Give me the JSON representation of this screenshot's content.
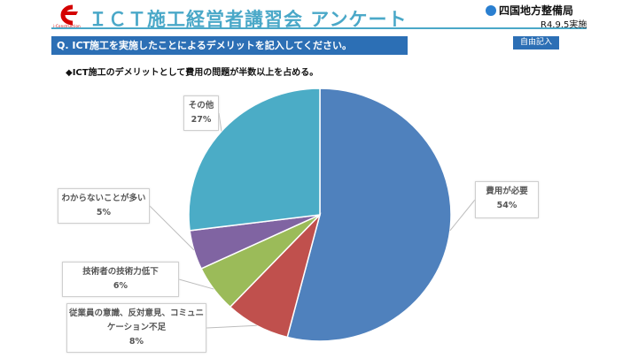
{
  "header": {
    "logo_text": "i-Construction",
    "title": "ＩＣＴ施工経営者講習会 アンケート",
    "org": "四国地方整備局",
    "date": "R4.9.5実施"
  },
  "question": "Q.  ICT施工を実施したことによるデメリットを記入してください。",
  "badge": "自由記入",
  "summary": "◆ICT施工のデメリットとして費用の問題が半数以上を占める。",
  "colors": {
    "accent": "#4aa8c8",
    "question_bg": "#2c6fb5"
  },
  "chart_data": {
    "type": "pie",
    "title": "",
    "slices": [
      {
        "label": "費用が必要",
        "value": 54,
        "pct_label": "54%",
        "color": "#4f81bd"
      },
      {
        "label": "従業員の意識、反対意見、コミュニケーション不足",
        "value": 8,
        "pct_label": "8%",
        "color": "#c0504d"
      },
      {
        "label": "技術者の技術力低下",
        "value": 6,
        "pct_label": "6%",
        "color": "#9bbb59"
      },
      {
        "label": "わからないことが多い",
        "value": 5,
        "pct_label": "5%",
        "color": "#8064a2"
      },
      {
        "label": "その他",
        "value": 27,
        "pct_label": "27%",
        "color": "#4bacc6"
      }
    ]
  }
}
